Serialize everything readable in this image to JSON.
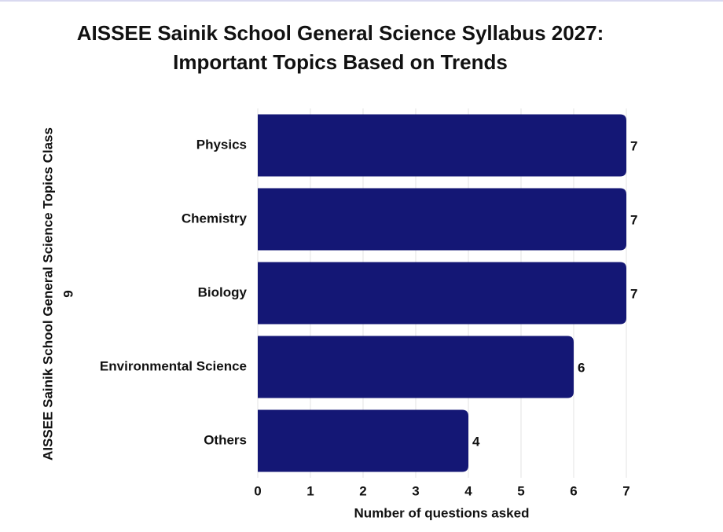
{
  "chart_data": {
    "type": "hbar",
    "title": [
      "AISSEE Sainik School General Science Syllabus 2027:",
      "Important Topics Based on Trends"
    ],
    "y_label": [
      "AISSEE Sainik School General Science Topics Class",
      "9"
    ],
    "x_label": "Number of questions asked",
    "categories": [
      "Physics",
      "Chemistry",
      "Biology",
      "Environmental Science",
      "Others"
    ],
    "values": [
      7,
      7,
      7,
      6,
      4
    ],
    "color": "#141775",
    "xlim": [
      0,
      7
    ],
    "xticks": [
      0,
      1,
      2,
      3,
      4,
      5,
      6,
      7
    ],
    "grid": true
  }
}
